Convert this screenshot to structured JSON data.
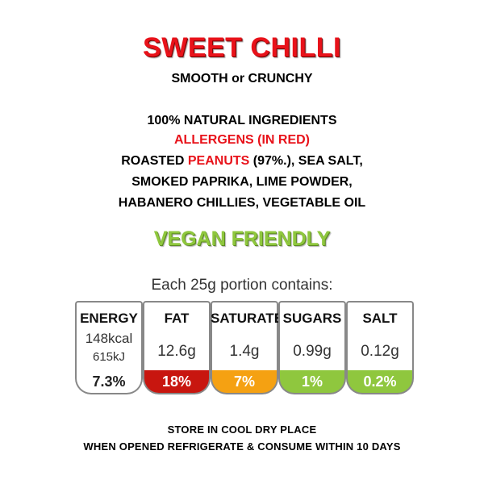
{
  "title": "SWEET CHILLI",
  "subtitle": "SMOOTH or CRUNCHY",
  "ingredients": {
    "line1": "100% NATURAL INGREDIENTS",
    "line2": "ALLERGENS (IN RED)",
    "line3_a": "ROASTED ",
    "line3_b": "PEANUTS",
    "line3_c": " (97%.), SEA SALT,",
    "line4": "SMOKED PAPRIKA, LIME POWDER,",
    "line5": "HABANERO CHILLIES, VEGETABLE OIL"
  },
  "vegan": "VEGAN FRIENDLY",
  "portion": "Each 25g portion contains:",
  "nutrition": {
    "energy": {
      "label": "ENERGY",
      "kcal": "148kcal",
      "kj": "615kJ",
      "pct": "7.3%"
    },
    "fat": {
      "label": "FAT",
      "value": "12.6g",
      "pct": "18%",
      "color": "#c8160f"
    },
    "saturates": {
      "label": "SATURATES",
      "value": "1.4g",
      "pct": "7%",
      "color": "#f5a112"
    },
    "sugars": {
      "label": "SUGARS",
      "value": "0.99g",
      "pct": "1%",
      "color": "#8fc73e"
    },
    "salt": {
      "label": "SALT",
      "value": "0.12g",
      "pct": "0.2%",
      "color": "#8fc73e"
    }
  },
  "footer": {
    "line1": "STORE IN COOL DRY PLACE",
    "line2": "WHEN OPENED REFRIGERATE & CONSUME WITHIN 10 DAYS"
  }
}
